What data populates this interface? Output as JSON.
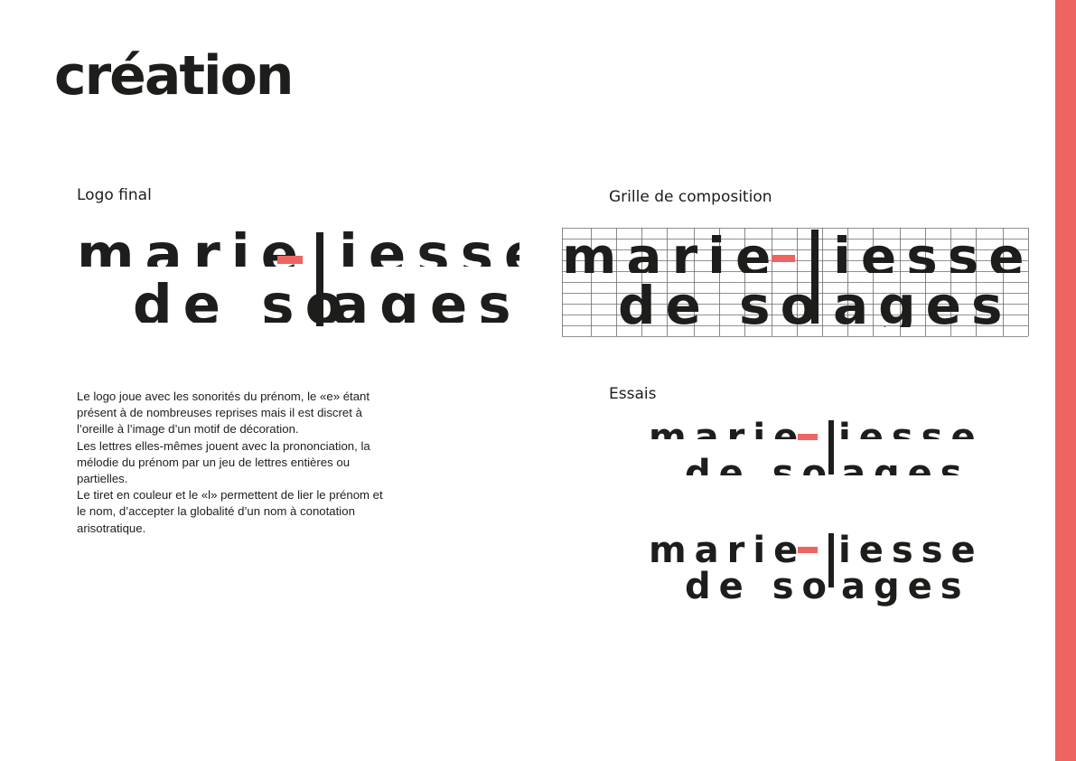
{
  "page": {
    "title": "création",
    "accent_color": "#ee6460",
    "text_color": "#1d1d1b"
  },
  "sections": {
    "logo_final": "Logo final",
    "grid": "Grille de composition",
    "trials": "Essais"
  },
  "logo": {
    "line1_left": "marie",
    "hyphen": "-",
    "line1_right": "iesse",
    "line2_left": "de so",
    "line2_right": "ages",
    "shared_letter": "l"
  },
  "description": [
    "Le logo joue avec les sonorités du prénom, le «e» étant présent à de nombreuses reprises mais il est discret à l’oreille à l’image d’un motif de décoration.",
    "Les lettres elles-mêmes jouent avec la prononciation, la mélodie du prénom par un jeu de lettres entières ou partielles.",
    "Le tiret en couleur et le «l» permettent de lier le prénom et le nom, d’accepter la globalité d’un nom à conotation arisotratique."
  ]
}
